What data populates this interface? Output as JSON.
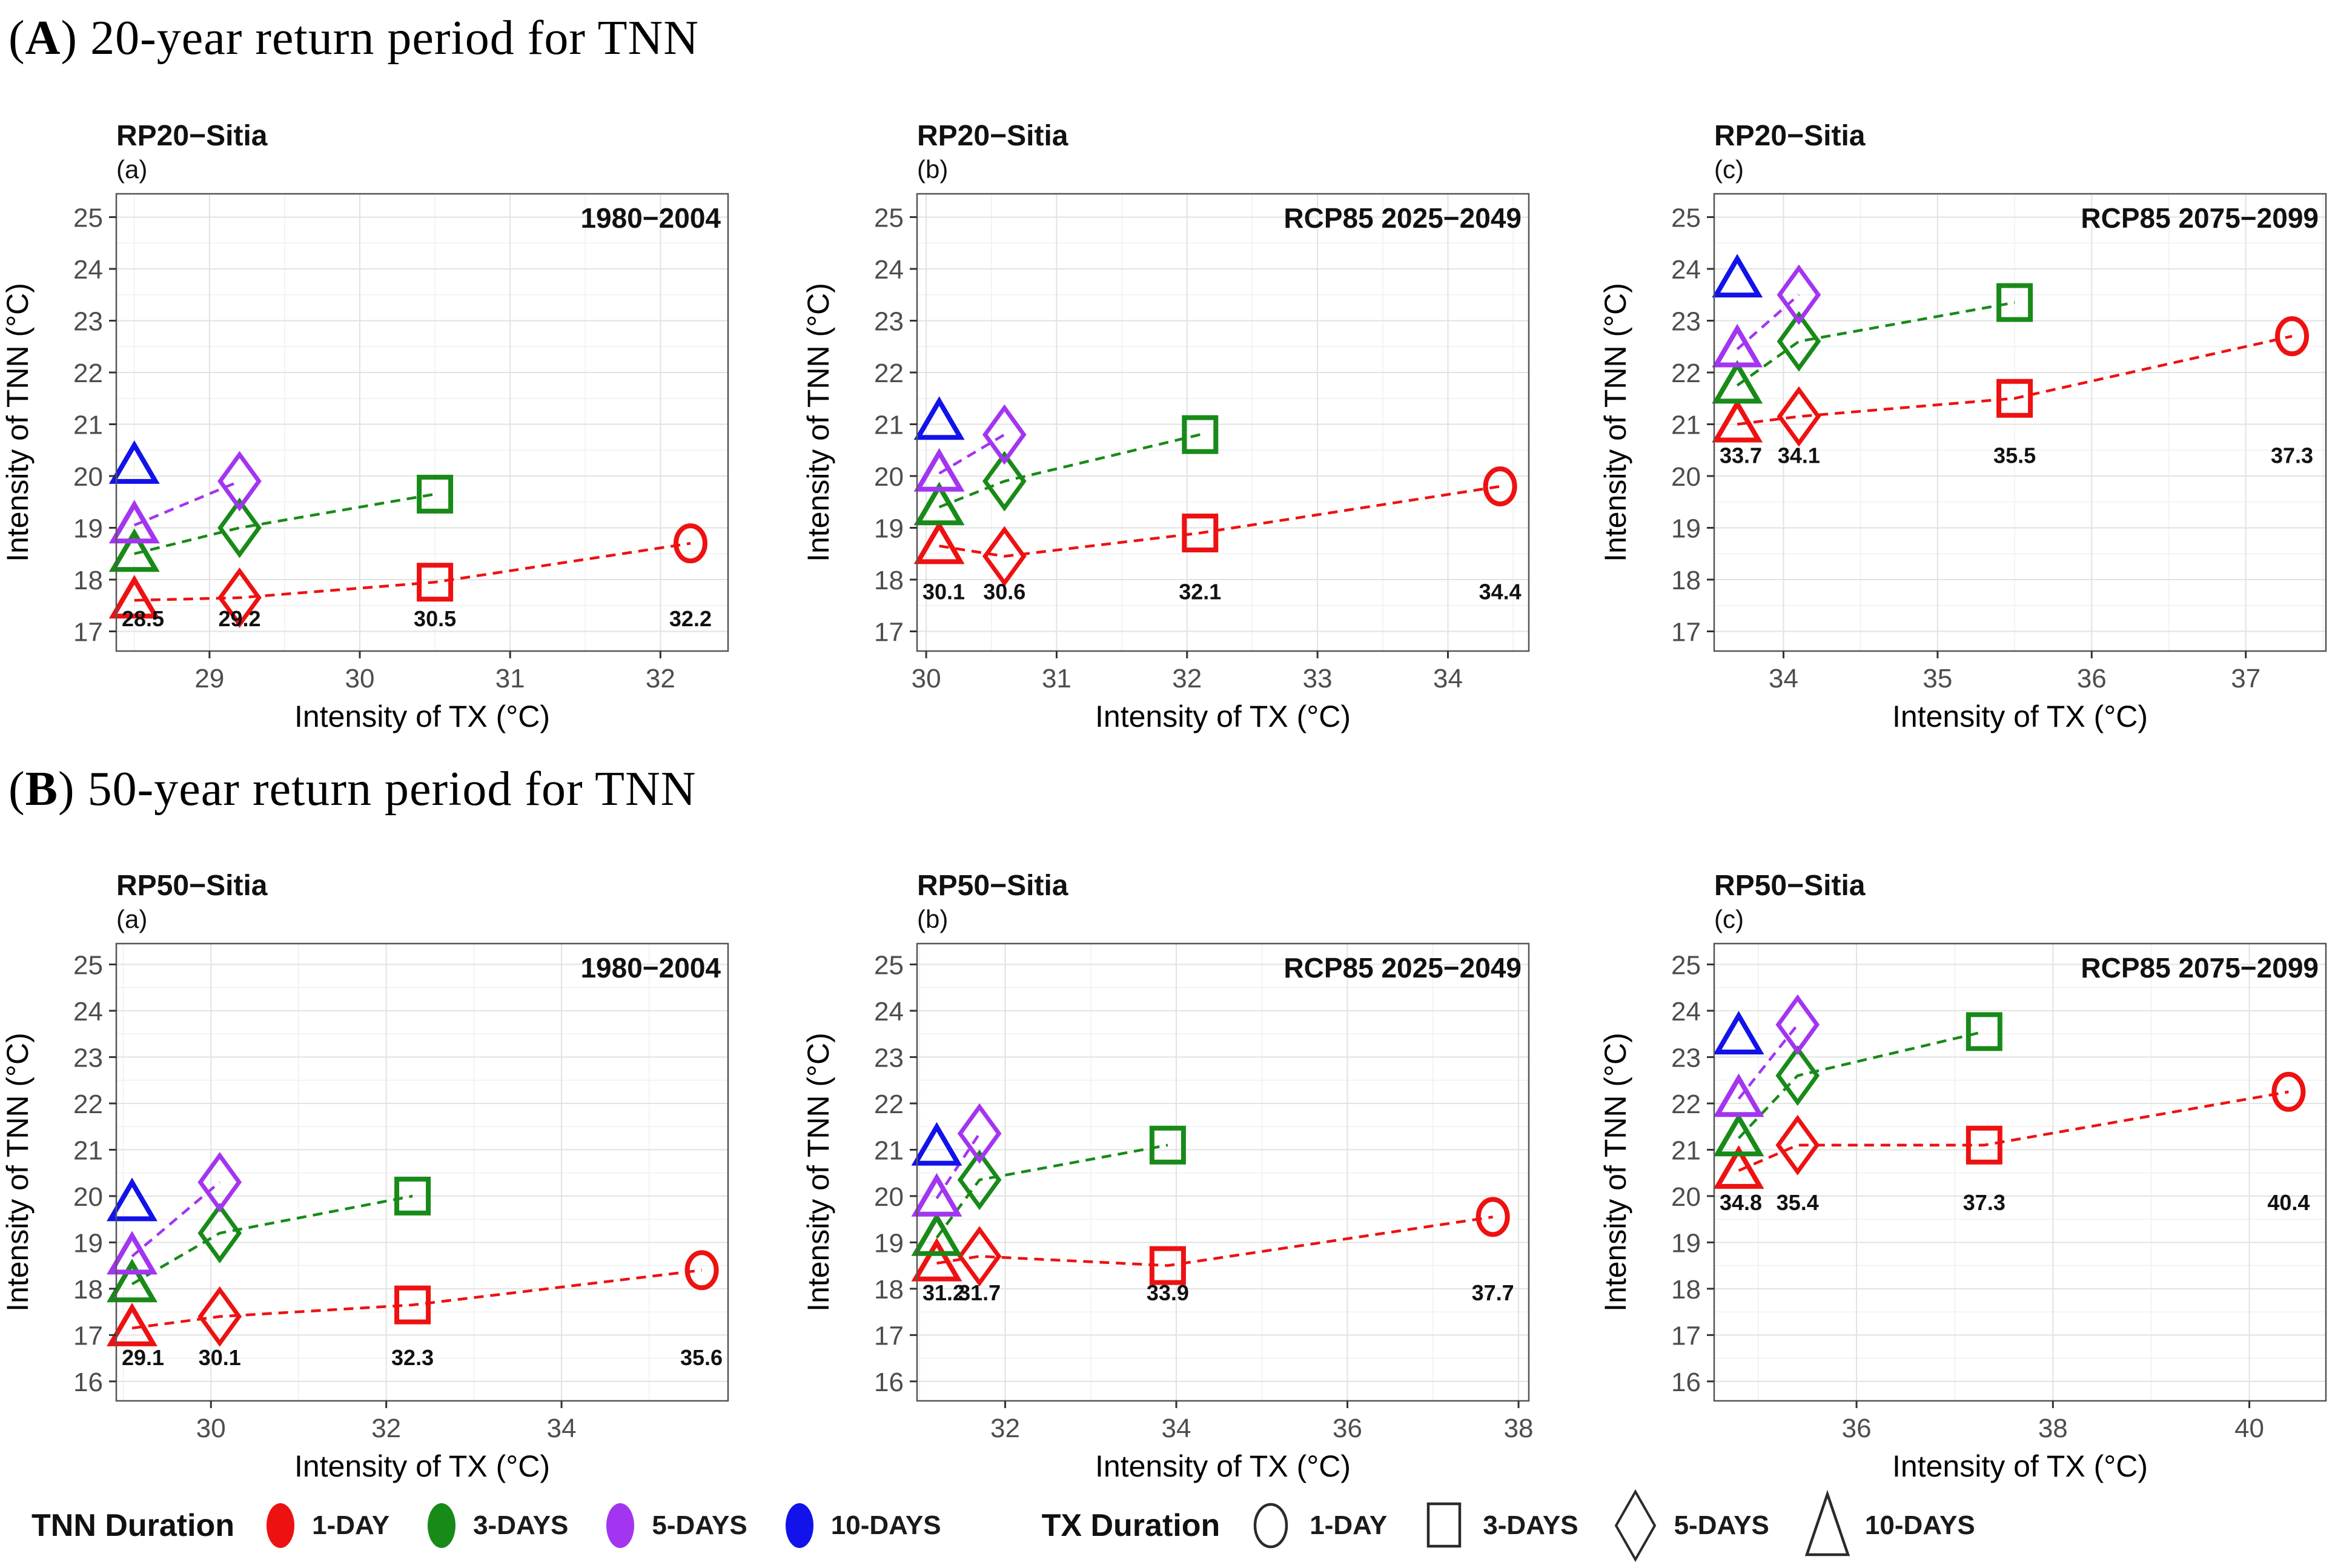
{
  "headers": {
    "paren_open": "(",
    "paren_close": ") ",
    "a_letter": "A",
    "a_text": "20-year return period for TNN",
    "b_letter": "B",
    "b_text": "50-year return period for TNN"
  },
  "colors": {
    "red": "#ee1111",
    "green": "#188a18",
    "purple": "#a335f0",
    "blue": "#1212ea",
    "axis_text": "#4d4d4d",
    "box_border": "#555555",
    "grid_major": "#e2e2e2",
    "grid_minor": "#f0f0f0"
  },
  "chart_data": [
    {
      "type": "scatter",
      "title": "RP20−Sitia",
      "tag": "(a)",
      "period": "1980−2004",
      "xlabel": "Intensity of TX (°C)",
      "ylabel": "Intensity of TNN (°C)",
      "xlim": [
        28.38,
        32.45
      ],
      "ylim": [
        16.62,
        25.45
      ],
      "xticks": [
        29,
        30,
        31,
        32
      ],
      "yticks": [
        17,
        18,
        19,
        20,
        21,
        22,
        23,
        24,
        25
      ],
      "annotation_y": 17.1,
      "annotations": [
        {
          "x": 28.5,
          "label": "28.5"
        },
        {
          "x": 29.2,
          "label": "29.2"
        },
        {
          "x": 30.5,
          "label": "30.5"
        },
        {
          "x": 32.2,
          "label": "32.2"
        }
      ],
      "series": [
        {
          "name": "1-DAY",
          "color": "#ee1111",
          "points": [
            {
              "shape": "triangle",
              "tx": "10-DAYS",
              "x": 28.5,
              "y": 17.6
            },
            {
              "shape": "diamond",
              "tx": "5-DAYS",
              "x": 29.2,
              "y": 17.65
            },
            {
              "shape": "square",
              "tx": "3-DAYS",
              "x": 30.5,
              "y": 17.95
            },
            {
              "shape": "circle",
              "tx": "1-DAY",
              "x": 32.2,
              "y": 18.7
            }
          ]
        },
        {
          "name": "3-DAYS",
          "color": "#188a18",
          "points": [
            {
              "shape": "triangle",
              "tx": "10-DAYS",
              "x": 28.5,
              "y": 18.5
            },
            {
              "shape": "diamond",
              "tx": "5-DAYS",
              "x": 29.2,
              "y": 19.0
            },
            {
              "shape": "square",
              "tx": "3-DAYS",
              "x": 30.5,
              "y": 19.65
            }
          ]
        },
        {
          "name": "5-DAYS",
          "color": "#a335f0",
          "points": [
            {
              "shape": "triangle",
              "tx": "10-DAYS",
              "x": 28.5,
              "y": 19.05
            },
            {
              "shape": "diamond",
              "tx": "5-DAYS",
              "x": 29.2,
              "y": 19.9
            }
          ]
        },
        {
          "name": "10-DAYS",
          "color": "#1212ea",
          "points": [
            {
              "shape": "triangle",
              "tx": "10-DAYS",
              "x": 28.5,
              "y": 20.2
            }
          ]
        }
      ]
    },
    {
      "type": "scatter",
      "title": "RP20−Sitia",
      "tag": "(b)",
      "period": "RCP85 2025−2049",
      "xlabel": "Intensity of TX (°C)",
      "ylabel": "Intensity of TNN (°C)",
      "xlim": [
        29.93,
        34.62
      ],
      "ylim": [
        16.62,
        25.45
      ],
      "xticks": [
        30,
        31,
        32,
        33,
        34
      ],
      "yticks": [
        17,
        18,
        19,
        20,
        21,
        22,
        23,
        24,
        25
      ],
      "annotation_y": 17.62,
      "annotations": [
        {
          "x": 30.1,
          "label": "30.1"
        },
        {
          "x": 30.6,
          "label": "30.6"
        },
        {
          "x": 32.1,
          "label": "32.1"
        },
        {
          "x": 34.4,
          "label": "34.4"
        }
      ],
      "series": [
        {
          "name": "1-DAY",
          "color": "#ee1111",
          "points": [
            {
              "shape": "triangle",
              "tx": "10-DAYS",
              "x": 30.1,
              "y": 18.65
            },
            {
              "shape": "diamond",
              "tx": "5-DAYS",
              "x": 30.6,
              "y": 18.45
            },
            {
              "shape": "square",
              "tx": "3-DAYS",
              "x": 32.1,
              "y": 18.9
            },
            {
              "shape": "circle",
              "tx": "1-DAY",
              "x": 34.4,
              "y": 19.8
            }
          ]
        },
        {
          "name": "3-DAYS",
          "color": "#188a18",
          "points": [
            {
              "shape": "triangle",
              "tx": "10-DAYS",
              "x": 30.1,
              "y": 19.4
            },
            {
              "shape": "diamond",
              "tx": "5-DAYS",
              "x": 30.6,
              "y": 19.9
            },
            {
              "shape": "square",
              "tx": "3-DAYS",
              "x": 32.1,
              "y": 20.8
            }
          ]
        },
        {
          "name": "5-DAYS",
          "color": "#a335f0",
          "points": [
            {
              "shape": "triangle",
              "tx": "10-DAYS",
              "x": 30.1,
              "y": 20.05
            },
            {
              "shape": "diamond",
              "tx": "5-DAYS",
              "x": 30.6,
              "y": 20.8
            }
          ]
        },
        {
          "name": "10-DAYS",
          "color": "#1212ea",
          "points": [
            {
              "shape": "triangle",
              "tx": "10-DAYS",
              "x": 30.1,
              "y": 21.05
            }
          ]
        }
      ]
    },
    {
      "type": "scatter",
      "title": "RP20−Sitia",
      "tag": "(c)",
      "period": "RCP85 2075−2099",
      "xlabel": "Intensity of TX (°C)",
      "ylabel": "Intensity of TNN (°C)",
      "xlim": [
        33.55,
        37.52
      ],
      "ylim": [
        16.62,
        25.45
      ],
      "xticks": [
        34,
        35,
        36,
        37
      ],
      "yticks": [
        17,
        18,
        19,
        20,
        21,
        22,
        23,
        24,
        25
      ],
      "annotation_y": 20.25,
      "annotations": [
        {
          "x": 33.7,
          "label": "33.7"
        },
        {
          "x": 34.1,
          "label": "34.1"
        },
        {
          "x": 35.5,
          "label": "35.5"
        },
        {
          "x": 37.3,
          "label": "37.3"
        }
      ],
      "series": [
        {
          "name": "1-DAY",
          "color": "#ee1111",
          "points": [
            {
              "shape": "triangle",
              "tx": "10-DAYS",
              "x": 33.7,
              "y": 21.0
            },
            {
              "shape": "diamond",
              "tx": "5-DAYS",
              "x": 34.1,
              "y": 21.15
            },
            {
              "shape": "square",
              "tx": "3-DAYS",
              "x": 35.5,
              "y": 21.5
            },
            {
              "shape": "circle",
              "tx": "1-DAY",
              "x": 37.3,
              "y": 22.7
            }
          ]
        },
        {
          "name": "3-DAYS",
          "color": "#188a18",
          "points": [
            {
              "shape": "triangle",
              "tx": "10-DAYS",
              "x": 33.7,
              "y": 21.75
            },
            {
              "shape": "diamond",
              "tx": "5-DAYS",
              "x": 34.1,
              "y": 22.6
            },
            {
              "shape": "square",
              "tx": "3-DAYS",
              "x": 35.5,
              "y": 23.35
            }
          ]
        },
        {
          "name": "5-DAYS",
          "color": "#a335f0",
          "points": [
            {
              "shape": "triangle",
              "tx": "10-DAYS",
              "x": 33.7,
              "y": 22.45
            },
            {
              "shape": "diamond",
              "tx": "5-DAYS",
              "x": 34.1,
              "y": 23.5
            }
          ]
        },
        {
          "name": "10-DAYS",
          "color": "#1212ea",
          "points": [
            {
              "shape": "triangle",
              "tx": "10-DAYS",
              "x": 33.7,
              "y": 23.8
            }
          ]
        }
      ]
    },
    {
      "type": "scatter",
      "title": "RP50−Sitia",
      "tag": "(a)",
      "period": "1980−2004",
      "xlabel": "Intensity of TX (°C)",
      "ylabel": "Intensity of TNN (°C)",
      "xlim": [
        28.92,
        35.9
      ],
      "ylim": [
        15.58,
        25.45
      ],
      "xticks": [
        30,
        32,
        34
      ],
      "yticks": [
        16,
        17,
        18,
        19,
        20,
        21,
        22,
        23,
        24,
        25
      ],
      "annotation_y": 16.35,
      "annotations": [
        {
          "x": 29.1,
          "label": "29.1"
        },
        {
          "x": 30.1,
          "label": "30.1"
        },
        {
          "x": 32.3,
          "label": "32.3"
        },
        {
          "x": 35.6,
          "label": "35.6"
        }
      ],
      "series": [
        {
          "name": "1-DAY",
          "color": "#ee1111",
          "points": [
            {
              "shape": "triangle",
              "tx": "10-DAYS",
              "x": 29.1,
              "y": 17.15
            },
            {
              "shape": "diamond",
              "tx": "5-DAYS",
              "x": 30.1,
              "y": 17.4
            },
            {
              "shape": "square",
              "tx": "3-DAYS",
              "x": 32.3,
              "y": 17.65
            },
            {
              "shape": "circle",
              "tx": "1-DAY",
              "x": 35.6,
              "y": 18.4
            }
          ]
        },
        {
          "name": "3-DAYS",
          "color": "#188a18",
          "points": [
            {
              "shape": "triangle",
              "tx": "10-DAYS",
              "x": 29.1,
              "y": 18.1
            },
            {
              "shape": "diamond",
              "tx": "5-DAYS",
              "x": 30.1,
              "y": 19.2
            },
            {
              "shape": "square",
              "tx": "3-DAYS",
              "x": 32.3,
              "y": 20.0
            }
          ]
        },
        {
          "name": "5-DAYS",
          "color": "#a335f0",
          "points": [
            {
              "shape": "triangle",
              "tx": "10-DAYS",
              "x": 29.1,
              "y": 18.7
            },
            {
              "shape": "diamond",
              "tx": "5-DAYS",
              "x": 30.1,
              "y": 20.3
            }
          ]
        },
        {
          "name": "10-DAYS",
          "color": "#1212ea",
          "points": [
            {
              "shape": "triangle",
              "tx": "10-DAYS",
              "x": 29.1,
              "y": 19.85
            }
          ]
        }
      ]
    },
    {
      "type": "scatter",
      "title": "RP50−Sitia",
      "tag": "(b)",
      "period": "RCP85 2025−2049",
      "xlabel": "Intensity of TX (°C)",
      "ylabel": "Intensity of TNN (°C)",
      "xlim": [
        30.97,
        38.12
      ],
      "ylim": [
        15.58,
        25.45
      ],
      "xticks": [
        32,
        34,
        36,
        38
      ],
      "yticks": [
        16,
        17,
        18,
        19,
        20,
        21,
        22,
        23,
        24,
        25
      ],
      "annotation_y": 17.75,
      "annotations": [
        {
          "x": 31.2,
          "label": "31.2"
        },
        {
          "x": 31.7,
          "label": "31.7"
        },
        {
          "x": 33.9,
          "label": "33.9"
        },
        {
          "x": 37.7,
          "label": "37.7"
        }
      ],
      "series": [
        {
          "name": "1-DAY",
          "color": "#ee1111",
          "points": [
            {
              "shape": "triangle",
              "tx": "10-DAYS",
              "x": 31.2,
              "y": 18.55
            },
            {
              "shape": "diamond",
              "tx": "5-DAYS",
              "x": 31.7,
              "y": 18.7
            },
            {
              "shape": "square",
              "tx": "3-DAYS",
              "x": 33.9,
              "y": 18.5
            },
            {
              "shape": "circle",
              "tx": "1-DAY",
              "x": 37.7,
              "y": 19.55
            }
          ]
        },
        {
          "name": "3-DAYS",
          "color": "#188a18",
          "points": [
            {
              "shape": "triangle",
              "tx": "10-DAYS",
              "x": 31.2,
              "y": 19.1
            },
            {
              "shape": "diamond",
              "tx": "5-DAYS",
              "x": 31.7,
              "y": 20.35
            },
            {
              "shape": "square",
              "tx": "3-DAYS",
              "x": 33.9,
              "y": 21.1
            }
          ]
        },
        {
          "name": "5-DAYS",
          "color": "#a335f0",
          "points": [
            {
              "shape": "triangle",
              "tx": "10-DAYS",
              "x": 31.2,
              "y": 19.95
            },
            {
              "shape": "diamond",
              "tx": "5-DAYS",
              "x": 31.7,
              "y": 21.35
            }
          ]
        },
        {
          "name": "10-DAYS",
          "color": "#1212ea",
          "points": [
            {
              "shape": "triangle",
              "tx": "10-DAYS",
              "x": 31.2,
              "y": 21.05
            }
          ]
        }
      ]
    },
    {
      "type": "scatter",
      "title": "RP50−Sitia",
      "tag": "(c)",
      "period": "RCP85 2075−2099",
      "xlabel": "Intensity of TX (°C)",
      "ylabel": "Intensity of TNN (°C)",
      "xlim": [
        34.55,
        40.78
      ],
      "ylim": [
        15.58,
        25.45
      ],
      "xticks": [
        36,
        38,
        40
      ],
      "yticks": [
        16,
        17,
        18,
        19,
        20,
        21,
        22,
        23,
        24,
        25
      ],
      "annotation_y": 19.7,
      "annotations": [
        {
          "x": 34.8,
          "label": "34.8"
        },
        {
          "x": 35.4,
          "label": "35.4"
        },
        {
          "x": 37.3,
          "label": "37.3"
        },
        {
          "x": 40.4,
          "label": "40.4"
        }
      ],
      "series": [
        {
          "name": "1-DAY",
          "color": "#ee1111",
          "points": [
            {
              "shape": "triangle",
              "tx": "10-DAYS",
              "x": 34.8,
              "y": 20.55
            },
            {
              "shape": "diamond",
              "tx": "5-DAYS",
              "x": 35.4,
              "y": 21.1
            },
            {
              "shape": "square",
              "tx": "3-DAYS",
              "x": 37.3,
              "y": 21.1
            },
            {
              "shape": "circle",
              "tx": "1-DAY",
              "x": 40.4,
              "y": 22.25
            }
          ]
        },
        {
          "name": "3-DAYS",
          "color": "#188a18",
          "points": [
            {
              "shape": "triangle",
              "tx": "10-DAYS",
              "x": 34.8,
              "y": 21.25
            },
            {
              "shape": "diamond",
              "tx": "5-DAYS",
              "x": 35.4,
              "y": 22.6
            },
            {
              "shape": "square",
              "tx": "3-DAYS",
              "x": 37.3,
              "y": 23.55
            }
          ]
        },
        {
          "name": "5-DAYS",
          "color": "#a335f0",
          "points": [
            {
              "shape": "triangle",
              "tx": "10-DAYS",
              "x": 34.8,
              "y": 22.1
            },
            {
              "shape": "diamond",
              "tx": "5-DAYS",
              "x": 35.4,
              "y": 23.7
            }
          ]
        },
        {
          "name": "10-DAYS",
          "color": "#1212ea",
          "points": [
            {
              "shape": "triangle",
              "tx": "10-DAYS",
              "x": 34.8,
              "y": 23.45
            }
          ]
        }
      ]
    }
  ],
  "legend": {
    "tnn_title": "TNN Duration",
    "tnn_items": [
      {
        "label": "1-DAY",
        "color": "#ee1111"
      },
      {
        "label": "3-DAYS",
        "color": "#188a18"
      },
      {
        "label": "5-DAYS",
        "color": "#a335f0"
      },
      {
        "label": "10-DAYS",
        "color": "#1212ea"
      }
    ],
    "tx_title": "TX Duration",
    "tx_items": [
      {
        "label": "1-DAY",
        "shape": "circle"
      },
      {
        "label": "3-DAYS",
        "shape": "square"
      },
      {
        "label": "5-DAYS",
        "shape": "diamond"
      },
      {
        "label": "10-DAYS",
        "shape": "triangle"
      }
    ]
  }
}
